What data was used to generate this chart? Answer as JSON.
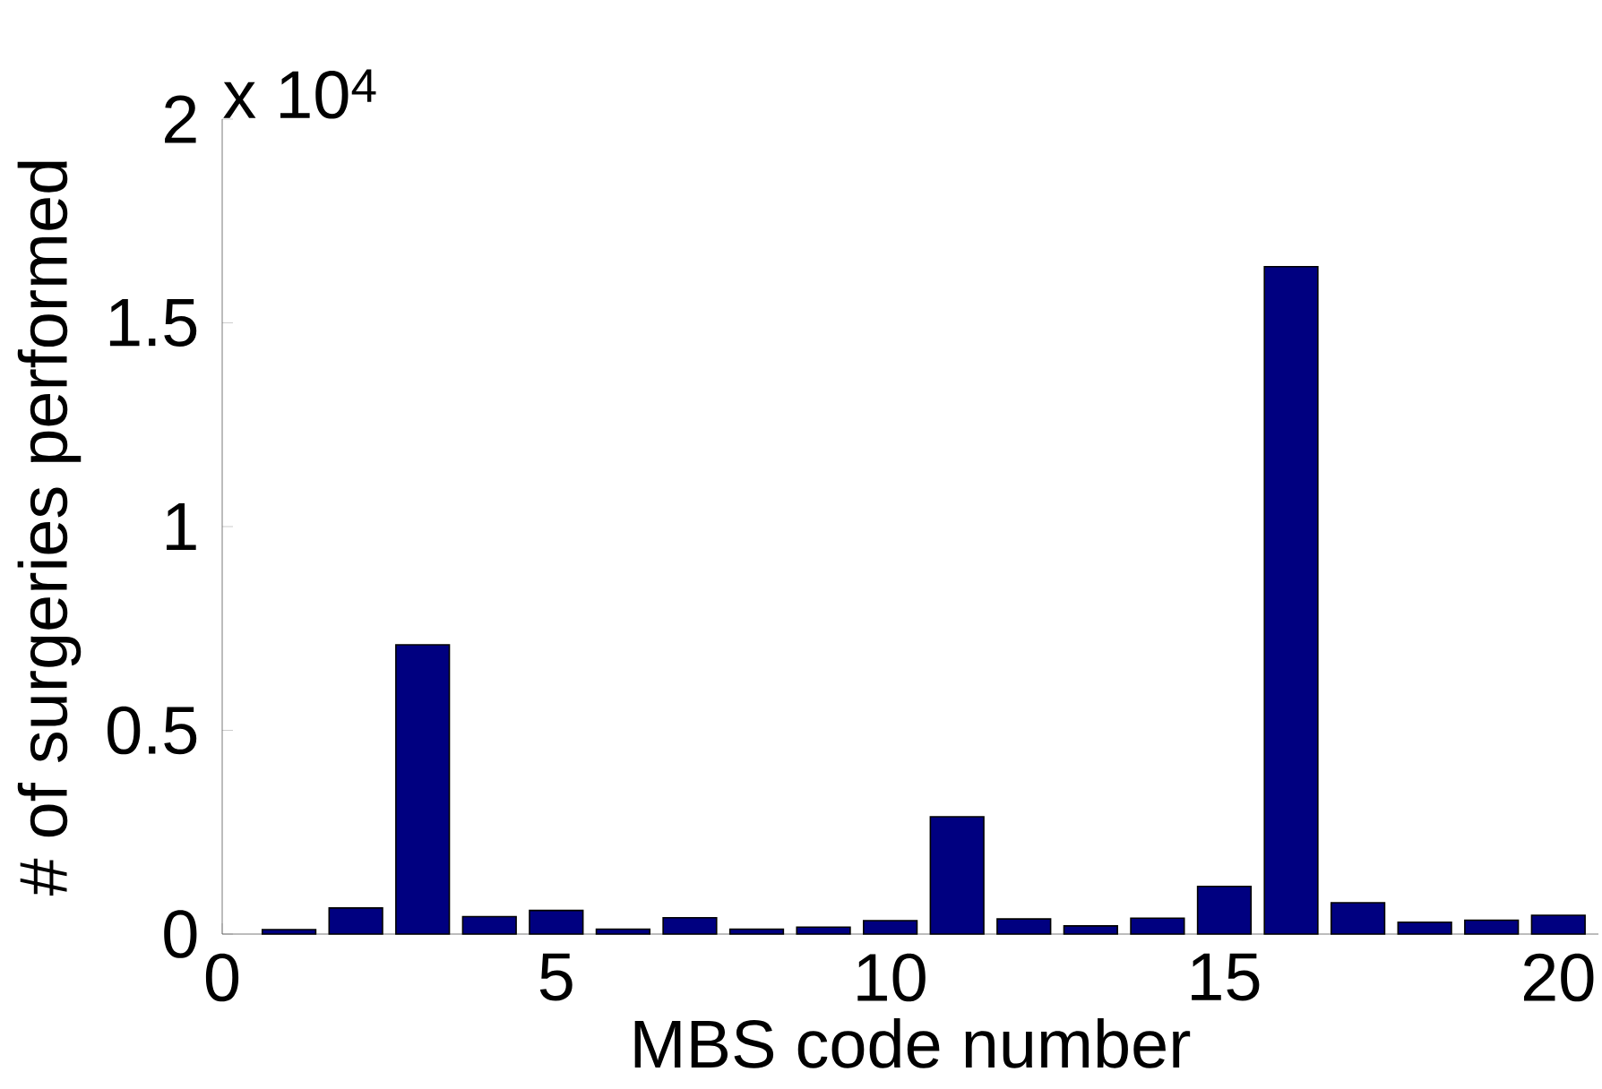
{
  "chart_data": {
    "type": "bar",
    "xlabel": "MBS code number",
    "ylabel": "# of surgeries performed",
    "annotations": [
      "x 10$^{4}$"
    ],
    "x": [
      1,
      2,
      3,
      4,
      5,
      6,
      7,
      8,
      9,
      10,
      11,
      12,
      13,
      14,
      15,
      16,
      17,
      18,
      19,
      20
    ],
    "values": [
      0.011,
      0.064,
      0.71,
      0.043,
      0.058,
      0.012,
      0.04,
      0.012,
      0.017,
      0.033,
      0.288,
      0.037,
      0.02,
      0.039,
      0.117,
      1.638,
      0.077,
      0.029,
      0.034,
      0.046
    ],
    "color": "#000080",
    "xlim": [
      0,
      20.6
    ],
    "xticks": [
      0,
      5,
      10,
      15,
      20
    ],
    "ylim": [
      0,
      2
    ],
    "yticks": [
      0,
      0.5,
      1,
      1.5,
      2
    ],
    "grid": false
  }
}
